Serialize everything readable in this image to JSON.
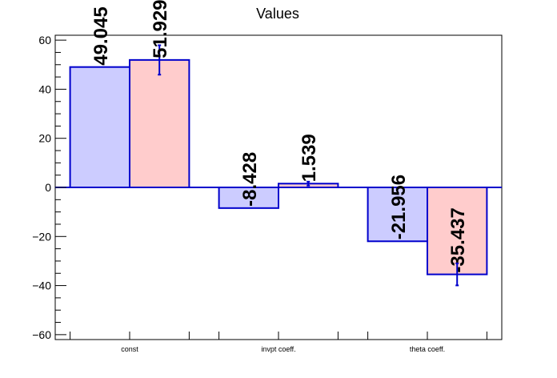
{
  "chart_data": {
    "type": "bar",
    "title": "Values",
    "categories": [
      "const",
      "invpt coeff.",
      "theta coeff."
    ],
    "series": [
      {
        "values": [
          49.045,
          -8.428,
          -21.956
        ],
        "labels": [
          "49.045",
          "-8.428",
          "-21.956"
        ],
        "errors": [
          0,
          0,
          0
        ],
        "fill": "#ccccff",
        "stroke": "#0000cc"
      },
      {
        "values": [
          51.929,
          1.539,
          -35.437
        ],
        "labels": [
          "51.929",
          "1.539",
          "-35.437"
        ],
        "errors": [
          6,
          0.8,
          4.5
        ],
        "fill": "#ffcccc",
        "stroke": "#0000cc"
      }
    ],
    "ylim": [
      -62,
      62
    ],
    "yticks": [
      -60,
      -40,
      -20,
      0,
      20,
      40,
      60
    ],
    "ytick_labels": [
      "−60",
      "−40",
      "−20",
      "0",
      "20",
      "40",
      "60"
    ],
    "xlabel": "",
    "ylabel": "",
    "grid": false
  }
}
